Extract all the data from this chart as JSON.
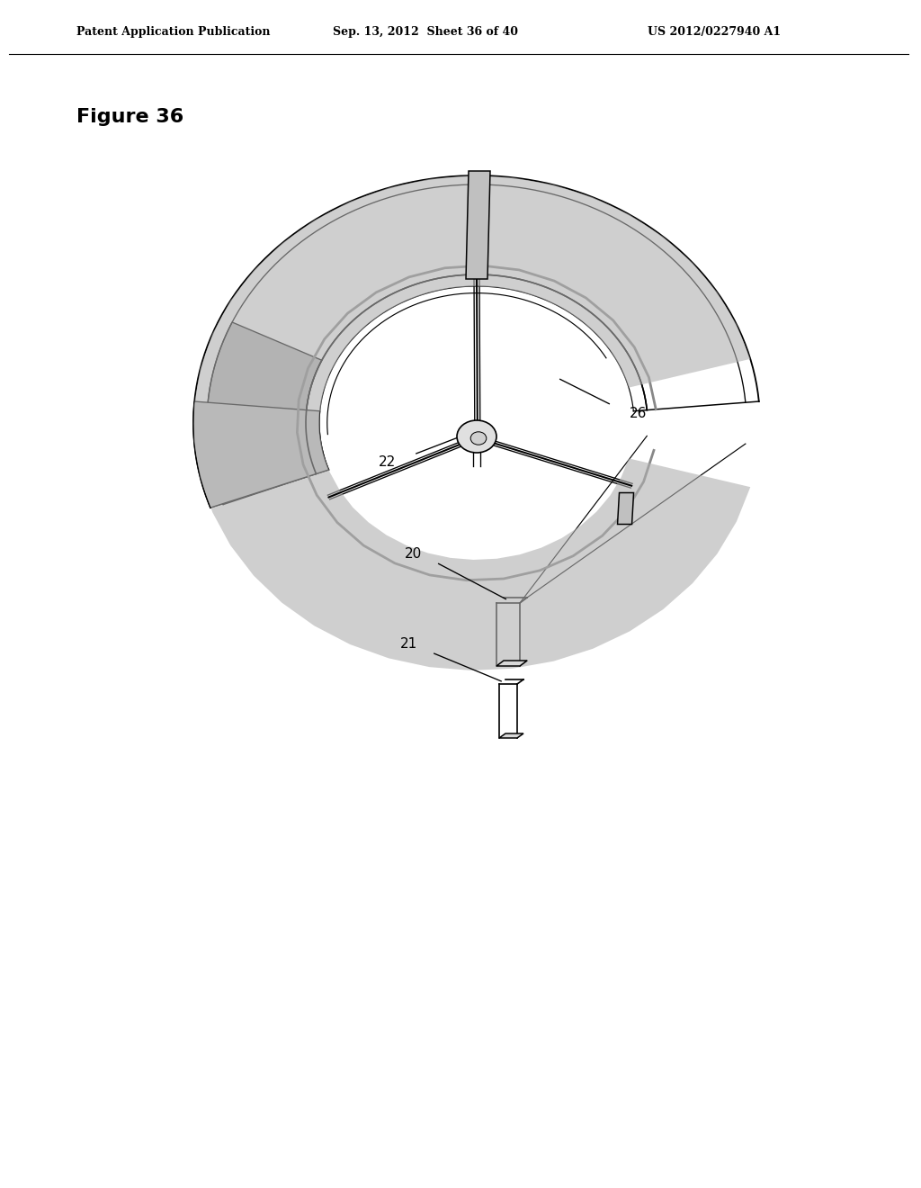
{
  "title_header": "Patent Application Publication",
  "date_header": "Sep. 13, 2012",
  "sheet_header": "Sheet 36 of 40",
  "patent_header": "US 2012/0227940 A1",
  "figure_label": "Figure 36",
  "label_22": "22",
  "label_26": "26",
  "label_20": "20",
  "label_21": "21",
  "bg_color": "#ffffff",
  "line_color": "#000000",
  "line_width": 1.2,
  "fill_color": "#d0d0d0",
  "header_fontsize": 9,
  "figure_label_fontsize": 16
}
